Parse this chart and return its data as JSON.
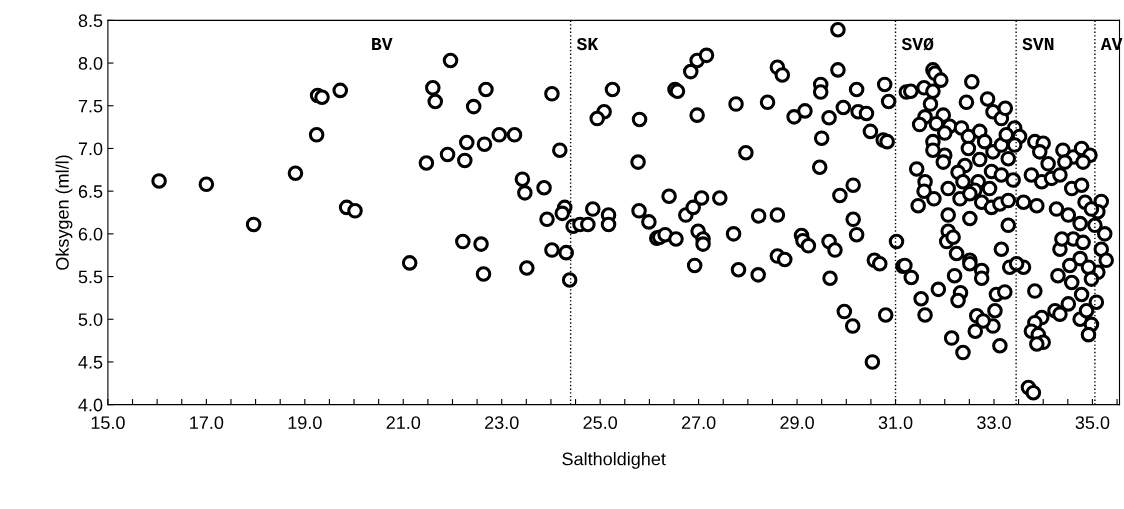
{
  "chart_data": {
    "type": "scatter",
    "xlabel": "Saltholdighet",
    "ylabel": "Oksygen (ml/l)",
    "marker": "circle",
    "grid": false,
    "legend": false,
    "xlim": [
      15.0,
      35.55
    ],
    "ylim": [
      4.0,
      8.5
    ],
    "xticks": [
      {
        "value": 15.0,
        "label": "15.0"
      },
      {
        "value": 15.5,
        "label": null
      },
      {
        "value": 16.0,
        "label": null
      },
      {
        "value": 16.5,
        "label": null
      },
      {
        "value": 17.0,
        "label": "17.0"
      },
      {
        "value": 17.5,
        "label": null
      },
      {
        "value": 18.0,
        "label": null
      },
      {
        "value": 18.5,
        "label": null
      },
      {
        "value": 19.0,
        "label": "19.0"
      },
      {
        "value": 19.5,
        "label": null
      },
      {
        "value": 20.0,
        "label": null
      },
      {
        "value": 20.5,
        "label": null
      },
      {
        "value": 21.0,
        "label": "21.0"
      },
      {
        "value": 21.5,
        "label": null
      },
      {
        "value": 22.0,
        "label": null
      },
      {
        "value": 22.5,
        "label": null
      },
      {
        "value": 23.0,
        "label": "23.0"
      },
      {
        "value": 23.5,
        "label": null
      },
      {
        "value": 24.0,
        "label": null
      },
      {
        "value": 24.5,
        "label": null
      },
      {
        "value": 25.0,
        "label": "25.0"
      },
      {
        "value": 25.5,
        "label": null
      },
      {
        "value": 26.0,
        "label": null
      },
      {
        "value": 26.5,
        "label": null
      },
      {
        "value": 27.0,
        "label": "27.0"
      },
      {
        "value": 27.5,
        "label": null
      },
      {
        "value": 28.0,
        "label": null
      },
      {
        "value": 28.5,
        "label": null
      },
      {
        "value": 29.0,
        "label": "29.0"
      },
      {
        "value": 29.5,
        "label": null
      },
      {
        "value": 30.0,
        "label": null
      },
      {
        "value": 30.5,
        "label": null
      },
      {
        "value": 31.0,
        "label": "31.0"
      },
      {
        "value": 31.5,
        "label": null
      },
      {
        "value": 32.0,
        "label": null
      },
      {
        "value": 32.5,
        "label": null
      },
      {
        "value": 33.0,
        "label": "33.0"
      },
      {
        "value": 33.5,
        "label": null
      },
      {
        "value": 34.0,
        "label": null
      },
      {
        "value": 34.5,
        "label": null
      },
      {
        "value": 35.0,
        "label": "35.0"
      },
      {
        "value": 35.5,
        "label": null
      }
    ],
    "yticks": [
      {
        "value": 4.0,
        "label": "4.0"
      },
      {
        "value": 4.5,
        "label": "4.5"
      },
      {
        "value": 5.0,
        "label": "5.0"
      },
      {
        "value": 5.5,
        "label": "5.5"
      },
      {
        "value": 6.0,
        "label": "6.0"
      },
      {
        "value": 6.5,
        "label": "6.5"
      },
      {
        "value": 7.0,
        "label": "7.0"
      },
      {
        "value": 7.5,
        "label": "7.5"
      },
      {
        "value": 8.0,
        "label": "8.0"
      },
      {
        "value": 8.5,
        "label": "8.5"
      }
    ],
    "ref_lines": [
      {
        "axis": "x",
        "value": 24.4,
        "label": "SK",
        "line_style": "dotted",
        "color": "#000000"
      },
      {
        "axis": "x",
        "value": 31.0,
        "label": "SVØ",
        "line_style": "dotted",
        "color": "#000000"
      },
      {
        "axis": "x",
        "value": 33.45,
        "label": "SVN",
        "line_style": "dotted",
        "color": "#000000"
      },
      {
        "axis": "x",
        "value": 35.05,
        "label": "AV",
        "line_style": "dotted",
        "color": "#000000"
      }
    ],
    "annotations": [
      "BV"
    ],
    "series": [
      {
        "color": "#000000",
        "x": [
          16.04,
          17.0,
          17.96,
          18.81,
          19.24,
          19.26,
          19.35,
          19.72,
          19.85,
          20.02,
          21.96,
          21.6,
          21.65,
          22.68,
          22.43,
          24.02,
          21.47,
          21.9,
          22.29,
          22.25,
          22.65,
          22.95,
          23.26,
          24.18,
          23.42,
          23.47,
          23.86,
          23.92,
          24.28,
          24.23,
          24.45,
          24.59,
          24.75,
          24.85,
          25.17,
          25.17,
          22.21,
          22.58,
          24.02,
          24.31,
          21.13,
          22.63,
          23.51,
          24.38,
          25.25,
          25.08,
          24.94,
          25.8,
          25.77,
          25.79,
          25.99,
          26.15,
          26.21,
          26.32,
          26.54,
          26.4,
          26.52,
          26.57,
          26.84,
          26.97,
          27.16,
          26.97,
          26.74,
          26.89,
          27.06,
          27.43,
          26.99,
          27.09,
          27.09,
          26.92,
          27.76,
          28.4,
          27.96,
          27.71,
          27.81,
          28.22,
          28.6,
          28.21,
          28.6,
          28.75,
          28.6,
          28.7,
          28.94,
          29.16,
          29.09,
          29.12,
          29.23,
          29.83,
          29.83,
          29.48,
          29.48,
          29.65,
          29.94,
          30.21,
          30.24,
          30.41,
          30.78,
          30.86,
          29.5,
          30.49,
          30.75,
          30.83,
          29.46,
          30.14,
          29.87,
          30.14,
          30.21,
          29.65,
          29.77,
          29.67,
          30.57,
          30.68,
          29.96,
          30.13,
          30.8,
          30.53,
          31.02,
          31.15,
          31.22,
          31.31,
          31.76,
          31.8,
          31.92,
          31.58,
          31.76,
          31.71,
          32.55,
          32.44,
          32.87,
          32.98,
          33.15,
          33.23,
          31.6,
          31.49,
          31.97,
          31.83,
          32.1,
          32.0,
          31.76,
          32.0,
          31.76,
          32.34,
          32.48,
          32.71,
          32.48,
          32.81,
          32.98,
          33.15,
          32.71,
          31.97,
          32.41,
          32.27,
          31.43,
          31.6,
          31.58,
          31.46,
          31.78,
          32.07,
          32.37,
          32.68,
          32.95,
          33.15,
          32.61,
          32.91,
          32.31,
          32.51,
          32.75,
          32.95,
          33.12,
          33.29,
          32.51,
          32.07,
          32.07,
          32.04,
          32.17,
          32.24,
          32.51,
          32.51,
          32.75,
          32.75,
          33.15,
          33.32,
          32.2,
          32.32,
          32.27,
          31.87,
          31.52,
          31.6,
          31.19,
          31.32,
          33.05,
          33.22,
          33.02,
          32.65,
          32.62,
          32.98,
          32.78,
          32.14,
          32.37,
          33.12,
          33.42,
          33.52,
          33.25,
          33.42,
          33.83,
          34.0,
          33.93,
          34.4,
          34.61,
          34.78,
          34.95,
          34.81,
          34.44,
          34.1,
          33.29,
          33.39,
          33.76,
          33.97,
          34.17,
          34.34,
          34.58,
          34.78,
          33.29,
          33.6,
          33.87,
          34.27,
          34.51,
          34.85,
          35.18,
          35.11,
          34.98,
          35.05,
          35.25,
          35.18,
          35.28,
          35.11,
          34.75,
          34.61,
          34.34,
          34.38,
          34.81,
          34.75,
          34.54,
          34.92,
          34.3,
          34.58,
          34.98,
          34.78,
          35.08,
          34.51,
          34.24,
          34.34,
          34.75,
          34.88,
          34.98,
          34.92,
          33.83,
          33.6,
          33.46,
          33.97,
          33.83,
          33.76,
          33.9,
          34.0,
          33.87,
          33.7,
          33.8
        ],
        "values": [
          6.62,
          6.58,
          6.11,
          6.71,
          7.16,
          7.62,
          7.6,
          7.68,
          6.31,
          6.27,
          8.03,
          7.71,
          7.55,
          7.69,
          7.49,
          7.64,
          6.83,
          6.93,
          7.07,
          6.86,
          7.05,
          7.16,
          7.16,
          6.98,
          6.64,
          6.48,
          6.54,
          6.17,
          6.31,
          6.24,
          6.09,
          6.11,
          6.11,
          6.29,
          6.22,
          6.11,
          5.91,
          5.88,
          5.81,
          5.78,
          5.66,
          5.53,
          5.6,
          5.46,
          7.69,
          7.43,
          7.35,
          7.34,
          6.84,
          6.27,
          6.14,
          5.95,
          5.96,
          5.99,
          5.94,
          6.44,
          7.69,
          7.67,
          7.9,
          8.03,
          8.09,
          7.39,
          6.22,
          6.31,
          6.42,
          6.42,
          6.03,
          5.94,
          5.88,
          5.63,
          7.52,
          7.54,
          6.95,
          6.0,
          5.58,
          6.21,
          6.22,
          5.52,
          5.74,
          5.7,
          7.95,
          7.86,
          7.37,
          7.44,
          5.98,
          5.92,
          5.86,
          8.39,
          7.92,
          7.75,
          7.66,
          7.36,
          7.48,
          7.69,
          7.43,
          7.41,
          7.75,
          7.55,
          7.12,
          7.2,
          7.1,
          7.08,
          6.78,
          6.57,
          6.45,
          6.17,
          5.99,
          5.91,
          5.81,
          5.48,
          5.69,
          5.65,
          5.09,
          4.92,
          5.05,
          4.5,
          5.91,
          5.62,
          7.66,
          7.67,
          7.92,
          7.88,
          7.8,
          7.71,
          7.67,
          7.52,
          7.78,
          7.54,
          7.58,
          7.43,
          7.35,
          7.47,
          7.37,
          7.28,
          7.39,
          7.29,
          7.26,
          7.18,
          7.08,
          6.92,
          6.98,
          7.24,
          7.14,
          7.2,
          7.0,
          7.08,
          6.96,
          7.04,
          6.87,
          6.84,
          6.8,
          6.72,
          6.76,
          6.61,
          6.5,
          6.33,
          6.41,
          6.53,
          6.61,
          6.61,
          6.73,
          6.69,
          6.51,
          6.53,
          6.41,
          6.47,
          6.37,
          6.31,
          6.35,
          6.1,
          6.18,
          6.22,
          6.03,
          5.91,
          5.96,
          5.77,
          5.69,
          5.65,
          5.57,
          5.48,
          5.82,
          5.61,
          5.51,
          5.31,
          5.22,
          5.35,
          5.24,
          5.05,
          5.63,
          5.49,
          5.29,
          5.32,
          5.1,
          5.04,
          4.86,
          4.92,
          4.98,
          4.78,
          4.61,
          4.69,
          7.24,
          7.14,
          7.16,
          7.04,
          7.08,
          7.06,
          6.96,
          6.98,
          6.9,
          7.0,
          6.92,
          6.84,
          6.84,
          6.82,
          6.88,
          6.63,
          6.69,
          6.61,
          6.65,
          6.69,
          6.53,
          6.57,
          6.39,
          6.37,
          6.33,
          6.29,
          6.22,
          6.37,
          6.38,
          6.26,
          6.29,
          6.1,
          6.0,
          5.82,
          5.69,
          5.55,
          6.12,
          5.94,
          5.82,
          5.94,
          5.9,
          5.71,
          5.63,
          5.61,
          5.51,
          5.43,
          5.47,
          5.29,
          5.2,
          5.18,
          5.1,
          5.06,
          5.0,
          5.1,
          4.94,
          4.82,
          5.33,
          5.61,
          5.65,
          5.02,
          4.96,
          4.86,
          4.82,
          4.73,
          4.71,
          4.2,
          4.14
        ]
      }
    ]
  }
}
